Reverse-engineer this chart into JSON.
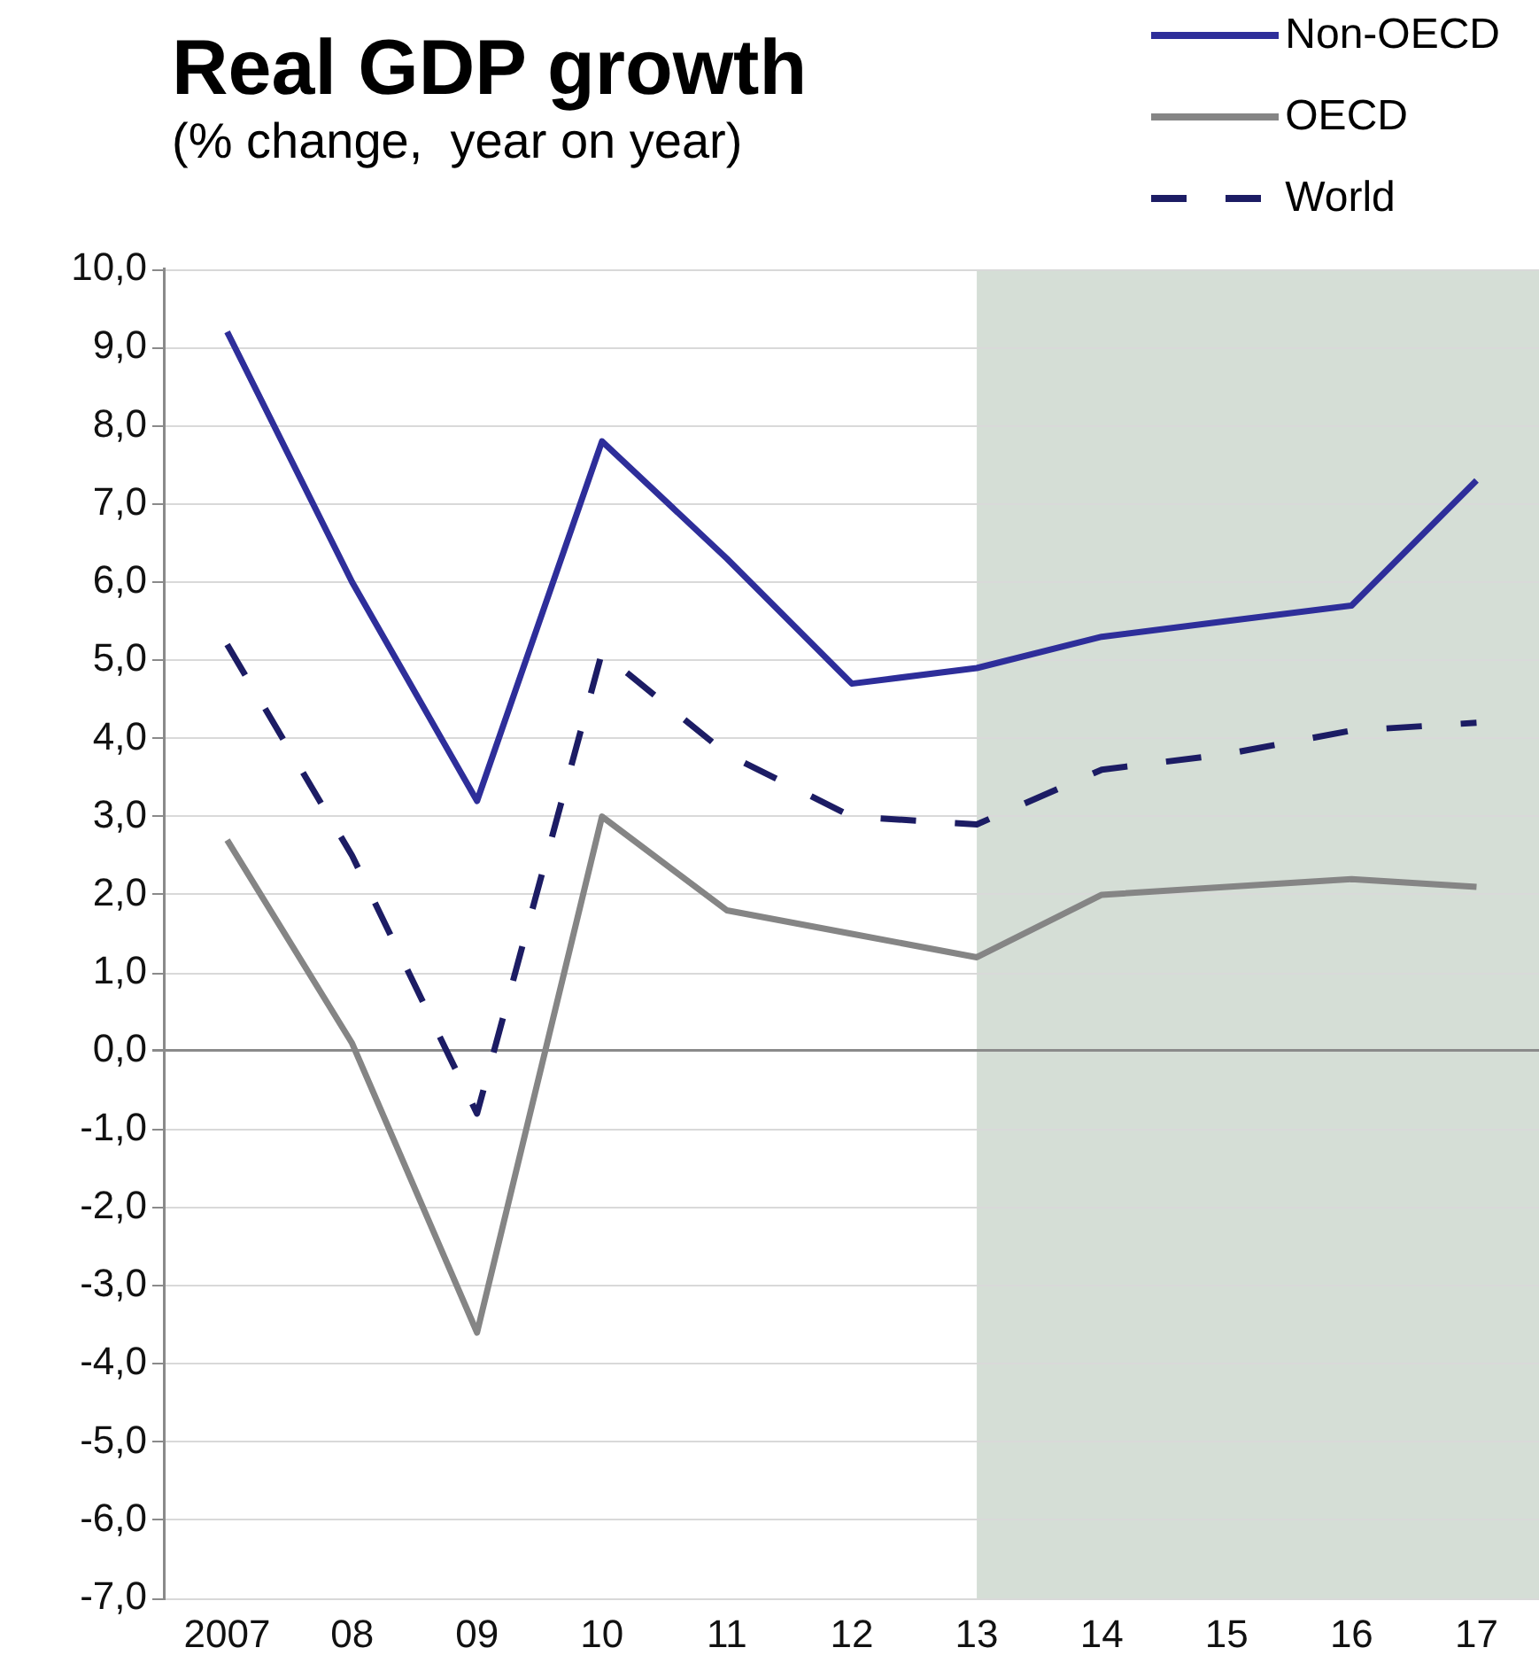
{
  "chart_data": {
    "type": "line",
    "title": "Real GDP growth",
    "subtitle": "(% change,  year on year)",
    "categories": [
      "2007",
      "08",
      "09",
      "10",
      "11",
      "12",
      "13",
      "14",
      "15",
      "16",
      "17"
    ],
    "series": [
      {
        "name": "Non-OECD",
        "color": "#2e2e9a",
        "values": [
          9.2,
          6.0,
          3.2,
          7.8,
          6.3,
          4.7,
          4.9,
          5.3,
          5.5,
          5.7,
          7.3
        ]
      },
      {
        "name": "OECD",
        "color": "#858585",
        "values": [
          2.7,
          0.1,
          -3.6,
          3.0,
          1.8,
          1.5,
          1.2,
          2.0,
          2.1,
          2.2,
          2.1
        ]
      },
      {
        "name": "World",
        "color": "#1c1c64",
        "line_style": "dashed",
        "values": [
          5.2,
          2.5,
          -0.8,
          5.1,
          3.8,
          3.0,
          2.9,
          3.6,
          3.8,
          4.1,
          4.2
        ]
      }
    ],
    "ylim": [
      -7,
      10
    ],
    "yticks": [
      {
        "value": -7,
        "label": "-7,0"
      },
      {
        "value": -6,
        "label": "-6,0"
      },
      {
        "value": -5,
        "label": "-5,0"
      },
      {
        "value": -4,
        "label": "-4,0"
      },
      {
        "value": -3,
        "label": "-3,0"
      },
      {
        "value": -2,
        "label": "-2,0"
      },
      {
        "value": -1,
        "label": "-1,0"
      },
      {
        "value": 0,
        "label": "0,0"
      },
      {
        "value": 1,
        "label": "1,0"
      },
      {
        "value": 2,
        "label": "2,0"
      },
      {
        "value": 3,
        "label": "3,0"
      },
      {
        "value": 4,
        "label": "4,0"
      },
      {
        "value": 5,
        "label": "5,0"
      },
      {
        "value": 6,
        "label": "6,0"
      },
      {
        "value": 7,
        "label": "7,0"
      },
      {
        "value": 8,
        "label": "8,0"
      },
      {
        "value": 9,
        "label": "9,0"
      },
      {
        "value": 10,
        "label": "10,0"
      }
    ],
    "bands": [
      {
        "axis": "x",
        "from": "13",
        "to": "17",
        "color": "#d5ded6"
      }
    ],
    "grid": "y",
    "legend": "top right",
    "marker": "none",
    "line_style": "solid"
  }
}
